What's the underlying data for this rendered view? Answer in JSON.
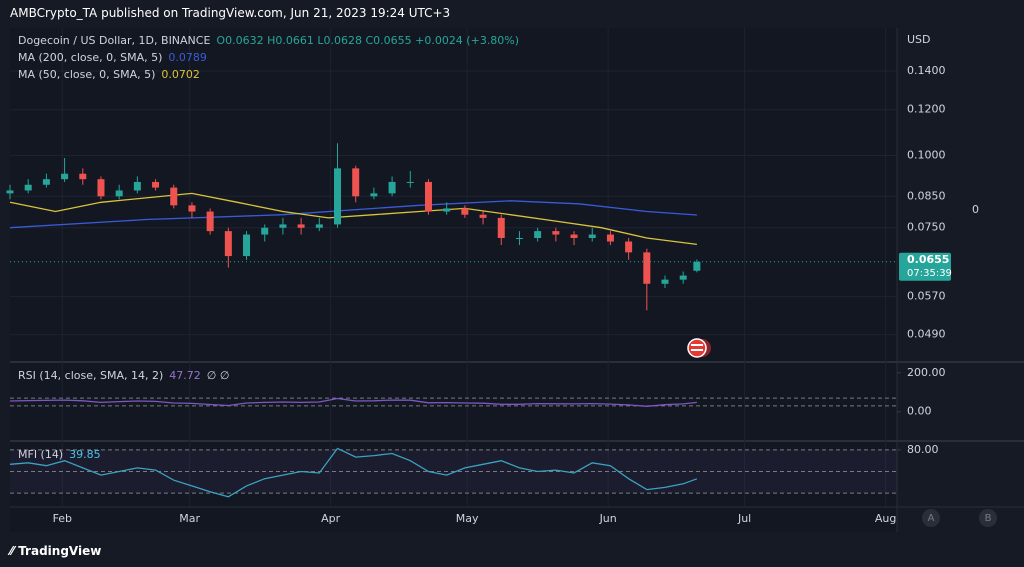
{
  "header": {
    "byline": "AMBCrypto_TA published on TradingView.com, Jun 21, 2023 19:24 UTC+3"
  },
  "footer": {
    "brand": "TradingView"
  },
  "chart_data": [
    {
      "type": "candlestick",
      "title": "Dogecoin / US Dollar, 1D, BINANCE",
      "ohlc_text": "O0.0632 H0.0661 L0.0628 C0.0655 +0.0024 (+3.80%)",
      "currency": "USD",
      "right_label": "0",
      "log_scale": true,
      "grid": true,
      "up_color": "#26a69a",
      "down_color": "#ef5350",
      "x": [
        0,
        4,
        8,
        12,
        16,
        20,
        24,
        28,
        32,
        36,
        40,
        44,
        48,
        52,
        56,
        60,
        64,
        68,
        72,
        76,
        80,
        84,
        88,
        92,
        96,
        100,
        104,
        108,
        112,
        116,
        120,
        124,
        128,
        132,
        136,
        140,
        144,
        148,
        151
      ],
      "open": [
        0.086,
        0.087,
        0.089,
        0.091,
        0.093,
        0.091,
        0.085,
        0.087,
        0.09,
        0.088,
        0.082,
        0.08,
        0.074,
        0.067,
        0.073,
        0.075,
        0.076,
        0.075,
        0.076,
        0.095,
        0.085,
        0.086,
        0.09,
        0.09,
        0.08,
        0.081,
        0.079,
        0.078,
        0.072,
        0.072,
        0.074,
        0.073,
        0.072,
        0.073,
        0.071,
        0.068,
        0.06,
        0.061,
        0.0632
      ],
      "high": [
        0.089,
        0.091,
        0.093,
        0.099,
        0.095,
        0.092,
        0.089,
        0.092,
        0.091,
        0.089,
        0.083,
        0.081,
        0.075,
        0.074,
        0.076,
        0.078,
        0.078,
        0.078,
        0.105,
        0.096,
        0.088,
        0.092,
        0.094,
        0.091,
        0.083,
        0.082,
        0.08,
        0.079,
        0.074,
        0.075,
        0.075,
        0.074,
        0.075,
        0.074,
        0.072,
        0.069,
        0.062,
        0.063,
        0.0661
      ],
      "low": [
        0.084,
        0.086,
        0.088,
        0.09,
        0.089,
        0.084,
        0.084,
        0.086,
        0.087,
        0.081,
        0.078,
        0.073,
        0.064,
        0.066,
        0.071,
        0.073,
        0.073,
        0.074,
        0.075,
        0.083,
        0.084,
        0.085,
        0.088,
        0.079,
        0.079,
        0.078,
        0.076,
        0.07,
        0.07,
        0.071,
        0.071,
        0.07,
        0.071,
        0.07,
        0.066,
        0.054,
        0.059,
        0.06,
        0.0628
      ],
      "close": [
        0.087,
        0.089,
        0.091,
        0.093,
        0.091,
        0.085,
        0.087,
        0.09,
        0.088,
        0.082,
        0.08,
        0.074,
        0.067,
        0.073,
        0.075,
        0.076,
        0.075,
        0.076,
        0.095,
        0.085,
        0.086,
        0.09,
        0.09,
        0.08,
        0.081,
        0.079,
        0.078,
        0.072,
        0.072,
        0.074,
        0.073,
        0.072,
        0.073,
        0.071,
        0.068,
        0.06,
        0.061,
        0.062,
        0.0655
      ],
      "series": [
        {
          "name": "MA (200, close, 0, SMA, 5)",
          "value_label": "0.0789",
          "color": "#3a5bd9",
          "x": [
            0,
            30,
            60,
            90,
            110,
            125,
            140,
            151
          ],
          "values": [
            0.075,
            0.0775,
            0.079,
            0.082,
            0.0835,
            0.0825,
            0.08,
            0.0789
          ]
        },
        {
          "name": "MA (50, close, 0, SMA, 5)",
          "value_label": "0.0702",
          "color": "#d9c43a",
          "x": [
            0,
            10,
            20,
            40,
            50,
            60,
            70,
            80,
            90,
            100,
            110,
            120,
            130,
            140,
            151
          ],
          "values": [
            0.083,
            0.08,
            0.083,
            0.086,
            0.083,
            0.08,
            0.078,
            0.079,
            0.08,
            0.081,
            0.079,
            0.077,
            0.075,
            0.072,
            0.0702
          ]
        }
      ],
      "last_price": {
        "value": 0.0655,
        "label": "0.0655",
        "countdown": "07:35:39",
        "color": "#26a69a"
      },
      "xlim": [
        0,
        195
      ],
      "xticks": [
        {
          "value": 11.5,
          "label": "Feb"
        },
        {
          "value": 39.5,
          "label": "Mar"
        },
        {
          "value": 70.5,
          "label": "Apr"
        },
        {
          "value": 100.5,
          "label": "May"
        },
        {
          "value": 131.5,
          "label": "Jun"
        },
        {
          "value": 161.5,
          "label": "Jul"
        },
        {
          "value": 192.5,
          "label": "Aug"
        }
      ],
      "ylim": [
        0.0443,
        0.1648
      ],
      "yticks": [
        {
          "value": 0.14,
          "label": "0.1400"
        },
        {
          "value": 0.12,
          "label": "0.1200"
        },
        {
          "value": 0.1,
          "label": "0.1000"
        },
        {
          "value": 0.085,
          "label": "0.0850"
        },
        {
          "value": 0.075,
          "label": "0.0750"
        },
        {
          "value": 0.057,
          "label": "0.0570"
        },
        {
          "value": 0.049,
          "label": "0.0490"
        }
      ]
    },
    {
      "type": "line",
      "title": "RSI (14, close, SMA, 14, 2)",
      "value_label": "47.72",
      "extra": "∅ ∅",
      "color": "#7e57c2",
      "label_color": "#9575cd",
      "x": [
        0,
        4,
        8,
        12,
        16,
        20,
        24,
        28,
        32,
        36,
        40,
        44,
        48,
        52,
        56,
        60,
        64,
        68,
        72,
        76,
        80,
        84,
        88,
        92,
        96,
        100,
        104,
        108,
        112,
        116,
        120,
        124,
        128,
        132,
        136,
        140,
        144,
        148,
        151
      ],
      "values": [
        55,
        57,
        58,
        60,
        56,
        48,
        52,
        55,
        53,
        45,
        43,
        37,
        32,
        45,
        48,
        50,
        48,
        50,
        68,
        55,
        56,
        60,
        59,
        46,
        47,
        45,
        44,
        38,
        38,
        42,
        41,
        40,
        42,
        39,
        35,
        28,
        36,
        40,
        47.72
      ],
      "bands": [
        70,
        30
      ],
      "ylim": [
        -145,
        245
      ],
      "yticks": [
        {
          "value": 200,
          "label": "200.00"
        },
        {
          "value": 0,
          "label": "0.00"
        }
      ],
      "xlim": [
        0,
        195
      ]
    },
    {
      "type": "line",
      "title": "MFI (14)",
      "value_label": "39.85",
      "color": "#3ba3c0",
      "label_color": "#4fc3e0",
      "x": [
        0,
        4,
        8,
        12,
        16,
        20,
        24,
        28,
        32,
        36,
        40,
        44,
        48,
        52,
        56,
        60,
        64,
        68,
        72,
        76,
        80,
        84,
        88,
        92,
        96,
        100,
        104,
        108,
        112,
        116,
        120,
        124,
        128,
        132,
        136,
        140,
        144,
        148,
        151
      ],
      "values": [
        60,
        62,
        58,
        65,
        55,
        45,
        50,
        55,
        52,
        38,
        30,
        22,
        15,
        30,
        40,
        45,
        50,
        48,
        82,
        70,
        72,
        75,
        65,
        50,
        45,
        55,
        60,
        65,
        55,
        50,
        52,
        48,
        62,
        58,
        40,
        25,
        28,
        33,
        39.85
      ],
      "bands": [
        80,
        50,
        20
      ],
      "ylim": [
        3.6,
        89.5
      ],
      "yticks": [
        {
          "value": 80,
          "label": "80.00"
        }
      ],
      "xlim": [
        0,
        195
      ]
    }
  ]
}
